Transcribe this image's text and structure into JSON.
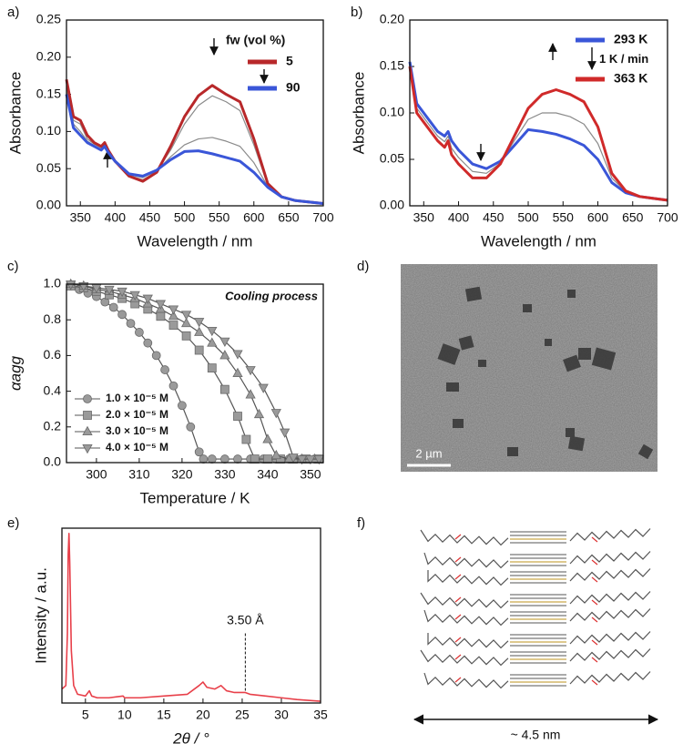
{
  "chart_data": [
    {
      "type": "line",
      "label": "a)",
      "xlabel": "Wavelength / nm",
      "ylabel": "Absorbance",
      "xlim": [
        330,
        700
      ],
      "ylim": [
        0,
        0.25
      ],
      "xticks": [
        350,
        400,
        450,
        500,
        550,
        600,
        650,
        700
      ],
      "yticks": [
        {
          "value": 0,
          "label": "0.00"
        },
        0.05,
        {
          "value": 0.1,
          "label": "0.10"
        },
        0.15,
        {
          "value": 0.2,
          "label": "0.20"
        },
        0.25
      ],
      "legend_title": "fw (vol %)",
      "x": [
        330,
        340,
        350,
        360,
        370,
        380,
        385,
        390,
        400,
        420,
        440,
        460,
        480,
        500,
        520,
        540,
        560,
        580,
        600,
        620,
        640,
        660,
        680,
        700
      ],
      "series": [
        {
          "color": "#8a8a8a",
          "values": [
            0.165,
            0.115,
            0.11,
            0.09,
            0.083,
            0.078,
            0.083,
            0.074,
            0.06,
            0.041,
            0.035,
            0.046,
            0.075,
            0.11,
            0.135,
            0.148,
            0.14,
            0.128,
            0.082,
            0.028,
            0.012,
            0.007,
            0.005,
            0.003
          ]
        },
        {
          "color": "#8a8a8a",
          "values": [
            0.158,
            0.11,
            0.1,
            0.087,
            0.081,
            0.076,
            0.081,
            0.073,
            0.06,
            0.042,
            0.038,
            0.047,
            0.066,
            0.082,
            0.09,
            0.092,
            0.087,
            0.08,
            0.058,
            0.026,
            0.012,
            0.007,
            0.005,
            0.003
          ]
        },
        {
          "name": "5",
          "color": "#b8282a",
          "values": [
            0.17,
            0.12,
            0.115,
            0.095,
            0.085,
            0.08,
            0.085,
            0.075,
            0.06,
            0.04,
            0.033,
            0.045,
            0.08,
            0.12,
            0.148,
            0.162,
            0.15,
            0.14,
            0.09,
            0.03,
            0.012,
            0.007,
            0.005,
            0.003
          ]
        },
        {
          "name": "90",
          "color": "#3a56d8",
          "values": [
            0.15,
            0.105,
            0.095,
            0.085,
            0.08,
            0.075,
            0.08,
            0.072,
            0.06,
            0.043,
            0.04,
            0.048,
            0.062,
            0.073,
            0.074,
            0.07,
            0.065,
            0.06,
            0.045,
            0.025,
            0.012,
            0.007,
            0.005,
            0.003
          ]
        }
      ]
    },
    {
      "type": "line",
      "label": "b)",
      "xlabel": "Wavelength / nm",
      "ylabel": "Absorbance",
      "xlim": [
        330,
        700
      ],
      "ylim": [
        0,
        0.2
      ],
      "xticks": [
        350,
        400,
        450,
        500,
        550,
        600,
        650,
        700
      ],
      "yticks": [
        {
          "value": 0,
          "label": "0.00"
        },
        0.05,
        {
          "value": 0.1,
          "label": "0.10"
        },
        0.15,
        {
          "value": 0.2,
          "label": "0.20"
        }
      ],
      "legend_note": "1 K / min",
      "x": [
        330,
        340,
        350,
        360,
        370,
        380,
        385,
        390,
        400,
        420,
        440,
        460,
        480,
        500,
        520,
        540,
        560,
        580,
        600,
        620,
        640,
        660,
        680,
        700
      ],
      "series": [
        {
          "color": "#8a8a8a",
          "values": [
            0.152,
            0.105,
            0.095,
            0.085,
            0.075,
            0.069,
            0.075,
            0.062,
            0.052,
            0.037,
            0.035,
            0.046,
            0.07,
            0.093,
            0.1,
            0.1,
            0.096,
            0.088,
            0.067,
            0.03,
            0.015,
            0.01,
            0.008,
            0.006
          ]
        },
        {
          "name": "293 K",
          "color": "#3a56d8",
          "values": [
            0.155,
            0.11,
            0.1,
            0.09,
            0.08,
            0.075,
            0.08,
            0.07,
            0.06,
            0.045,
            0.04,
            0.048,
            0.065,
            0.082,
            0.08,
            0.077,
            0.072,
            0.065,
            0.05,
            0.025,
            0.014,
            0.01,
            0.008,
            0.006
          ]
        },
        {
          "name": "363 K",
          "color": "#d02a2a",
          "values": [
            0.15,
            0.1,
            0.09,
            0.08,
            0.07,
            0.063,
            0.07,
            0.055,
            0.045,
            0.03,
            0.03,
            0.045,
            0.075,
            0.105,
            0.12,
            0.125,
            0.12,
            0.112,
            0.085,
            0.035,
            0.016,
            0.01,
            0.008,
            0.006
          ]
        }
      ]
    },
    {
      "type": "line",
      "label": "c)",
      "xlabel": "Temperature / K",
      "ylabel": "αagg",
      "xlim": [
        293,
        353
      ],
      "ylim": [
        0,
        1
      ],
      "xticks": [
        300,
        310,
        320,
        330,
        340,
        350
      ],
      "yticks": [
        {
          "value": 0,
          "label": "0.0"
        },
        0.2,
        0.4,
        0.6,
        0.8,
        {
          "value": 1,
          "label": "1.0"
        }
      ],
      "annotations": [
        {
          "text": "Cooling process"
        }
      ],
      "series": [
        {
          "name": "1.0 × 10⁻⁵ M",
          "color": "#9a9a9a",
          "marker": "circle",
          "x": [
            294,
            296,
            298,
            300,
            302,
            304,
            306,
            308,
            310,
            312,
            314,
            316,
            318,
            320,
            322,
            324,
            325,
            327,
            330,
            333,
            336,
            339,
            342,
            345,
            348,
            351
          ],
          "values": [
            0.99,
            0.97,
            0.95,
            0.93,
            0.9,
            0.87,
            0.83,
            0.78,
            0.73,
            0.67,
            0.6,
            0.52,
            0.43,
            0.32,
            0.2,
            0.06,
            0.02,
            0.02,
            0.02,
            0.02,
            0.02,
            0.02,
            0.02,
            0.02,
            0.02,
            0.02
          ]
        },
        {
          "name": "2.0 × 10⁻⁵ M",
          "color": "#9a9a9a",
          "marker": "square",
          "x": [
            294,
            297,
            300,
            303,
            306,
            309,
            312,
            315,
            318,
            321,
            324,
            327,
            330,
            333,
            335,
            337,
            340,
            343,
            346,
            349,
            352
          ],
          "values": [
            0.99,
            0.98,
            0.96,
            0.94,
            0.92,
            0.89,
            0.86,
            0.82,
            0.77,
            0.71,
            0.63,
            0.53,
            0.41,
            0.26,
            0.13,
            0.02,
            0.02,
            0.02,
            0.02,
            0.02,
            0.02
          ]
        },
        {
          "name": "3.0 × 10⁻⁵ M",
          "color": "#9a9a9a",
          "marker": "triangle-up",
          "x": [
            294,
            297,
            300,
            303,
            306,
            309,
            312,
            315,
            318,
            321,
            324,
            327,
            330,
            333,
            336,
            338,
            340,
            342,
            345,
            348,
            351
          ],
          "values": [
            1,
            0.99,
            0.97,
            0.96,
            0.94,
            0.92,
            0.89,
            0.86,
            0.82,
            0.78,
            0.73,
            0.67,
            0.6,
            0.5,
            0.38,
            0.27,
            0.13,
            0.04,
            0.02,
            0.02,
            0.02
          ]
        },
        {
          "name": "4.0 × 10⁻⁵ M",
          "color": "#9a9a9a",
          "marker": "triangle-down",
          "x": [
            294,
            297,
            300,
            303,
            306,
            309,
            312,
            315,
            318,
            321,
            324,
            327,
            330,
            333,
            336,
            339,
            342,
            344,
            346,
            348,
            350,
            352
          ],
          "values": [
            1,
            0.99,
            0.98,
            0.97,
            0.96,
            0.94,
            0.92,
            0.89,
            0.86,
            0.83,
            0.79,
            0.74,
            0.68,
            0.61,
            0.52,
            0.42,
            0.28,
            0.17,
            0.03,
            0.02,
            0.02,
            0.02
          ]
        }
      ]
    },
    {
      "type": "line",
      "label": "e)",
      "xlabel": "2θ / °",
      "ylabel": "Intensity / a.u.",
      "xlim": [
        2,
        35
      ],
      "ylim": [
        0,
        1
      ],
      "xticks": [
        5,
        10,
        15,
        20,
        25,
        30,
        35
      ],
      "annotations": [
        {
          "text": "3.50 Å",
          "x": 25.4
        }
      ],
      "x": [
        2,
        2.5,
        2.7,
        2.8,
        2.9,
        3,
        3.2,
        3.5,
        4,
        5,
        5.5,
        5.8,
        6.5,
        8,
        9.8,
        10,
        10.5,
        12,
        15,
        18,
        19.5,
        20,
        20.5,
        21.5,
        22.3,
        23,
        24,
        25.4,
        26,
        28,
        30,
        32,
        35
      ],
      "series": [
        {
          "color": "#e8404a",
          "values": [
            0.08,
            0.1,
            0.4,
            0.85,
            0.97,
            0.8,
            0.3,
            0.1,
            0.05,
            0.04,
            0.07,
            0.04,
            0.03,
            0.03,
            0.04,
            0.03,
            0.03,
            0.03,
            0.04,
            0.05,
            0.1,
            0.12,
            0.09,
            0.08,
            0.1,
            0.07,
            0.06,
            0.06,
            0.05,
            0.04,
            0.03,
            0.02,
            0.01
          ]
        }
      ]
    }
  ],
  "image_panel": {
    "label": "d)",
    "scale_bar": "2 µm"
  },
  "structure_panel": {
    "label": "f)",
    "dimension": "~ 4.5 nm"
  }
}
